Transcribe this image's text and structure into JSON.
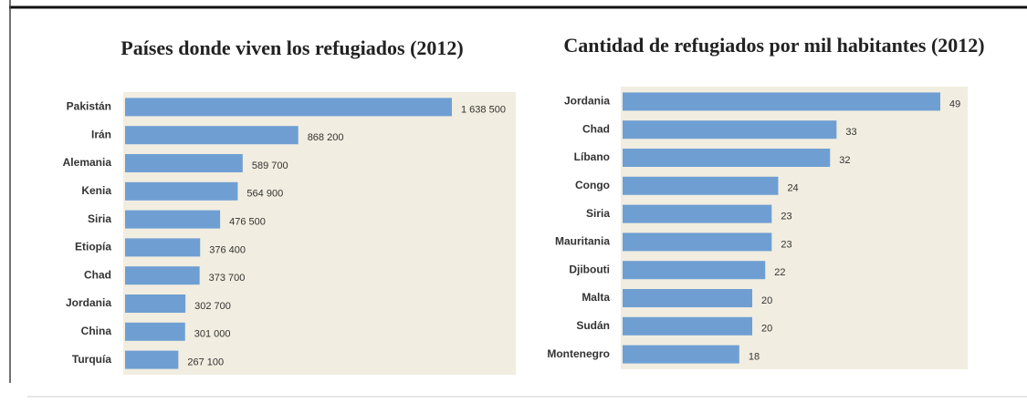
{
  "chart_data": [
    {
      "type": "bar",
      "orientation": "horizontal",
      "title": "Países donde viven los refugiados (2012)",
      "categories": [
        "Pakistán",
        "Irán",
        "Alemania",
        "Kenia",
        "Siria",
        "Etiopía",
        "Chad",
        "Jordania",
        "China",
        "Turquía"
      ],
      "values": [
        1638500,
        868200,
        589700,
        564900,
        476500,
        376400,
        373700,
        302700,
        301000,
        267100
      ],
      "value_labels": [
        "1 638 500",
        "868 200",
        "589 700",
        "564 900",
        "476 500",
        "376 400",
        "373 700",
        "302 700",
        "301 000",
        "267 100"
      ],
      "color": "#6f9fd2"
    },
    {
      "type": "bar",
      "orientation": "horizontal",
      "title": "Cantidad de refugiados por mil habitantes (2012)",
      "categories": [
        "Jordania",
        "Chad",
        "Líbano",
        "Congo",
        "Siria",
        "Mauritania",
        "Djibouti",
        "Malta",
        "Sudán",
        "Montenegro"
      ],
      "values": [
        49,
        33,
        32,
        24,
        23,
        23,
        22,
        20,
        20,
        18
      ],
      "color": "#6f9fd2"
    }
  ]
}
